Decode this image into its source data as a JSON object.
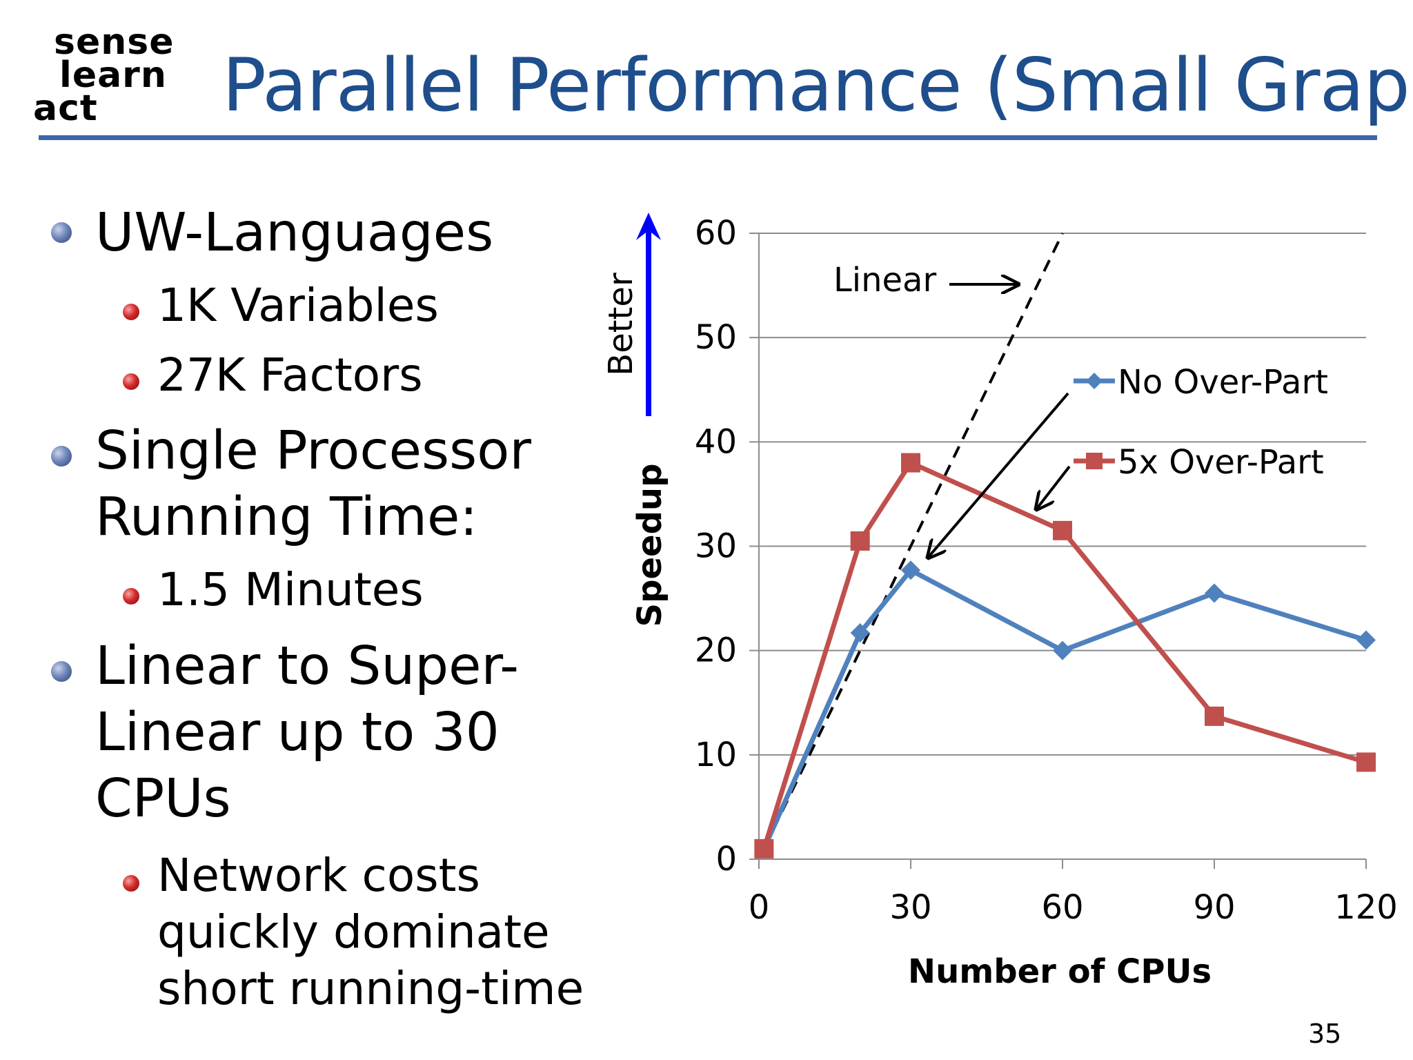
{
  "logo": {
    "line1": "sense",
    "line2": "learn",
    "line3": "act"
  },
  "title": "Parallel Performance (Small Graph)",
  "bullets": [
    {
      "text": "UW-Languages",
      "sub": [
        "1K Variables",
        "27K Factors"
      ]
    },
    {
      "text_lines": [
        "Single Processor",
        "Running Time:"
      ],
      "sub": [
        "1.5 Minutes"
      ]
    },
    {
      "text_lines": [
        "Linear to Super-",
        "Linear up to 30",
        "CPUs"
      ],
      "sub_lines": [
        "Network costs",
        "quickly dominate",
        "short running-time"
      ]
    }
  ],
  "page_number": "35",
  "colors": {
    "title": "#1f4e8c",
    "no_over": "#4f81bd",
    "five_over": "#c0504d",
    "arrow": "#0000ff"
  },
  "chart_data": {
    "type": "line",
    "xlabel": "Number of CPUs",
    "ylabel": "Speedup",
    "xlim": [
      0,
      120
    ],
    "ylim": [
      0,
      60
    ],
    "xticks": [
      0,
      30,
      60,
      90,
      120
    ],
    "yticks": [
      0,
      10,
      20,
      30,
      40,
      50,
      60
    ],
    "grid": "horizontal",
    "better_label": "Better",
    "series": [
      {
        "name": "No Over-Part",
        "marker": "diamond",
        "x": [
          1,
          20,
          30,
          60,
          90,
          120
        ],
        "y": [
          1,
          21.7,
          27.7,
          20,
          25.5,
          21
        ]
      },
      {
        "name": "5x Over-Part",
        "marker": "square",
        "x": [
          1,
          20,
          30,
          60,
          90,
          120
        ],
        "y": [
          1,
          30.5,
          38,
          31.5,
          13.7,
          9.3
        ]
      }
    ],
    "linear": {
      "name": "Linear",
      "x": [
        1,
        60
      ],
      "y": [
        1,
        60
      ]
    }
  }
}
